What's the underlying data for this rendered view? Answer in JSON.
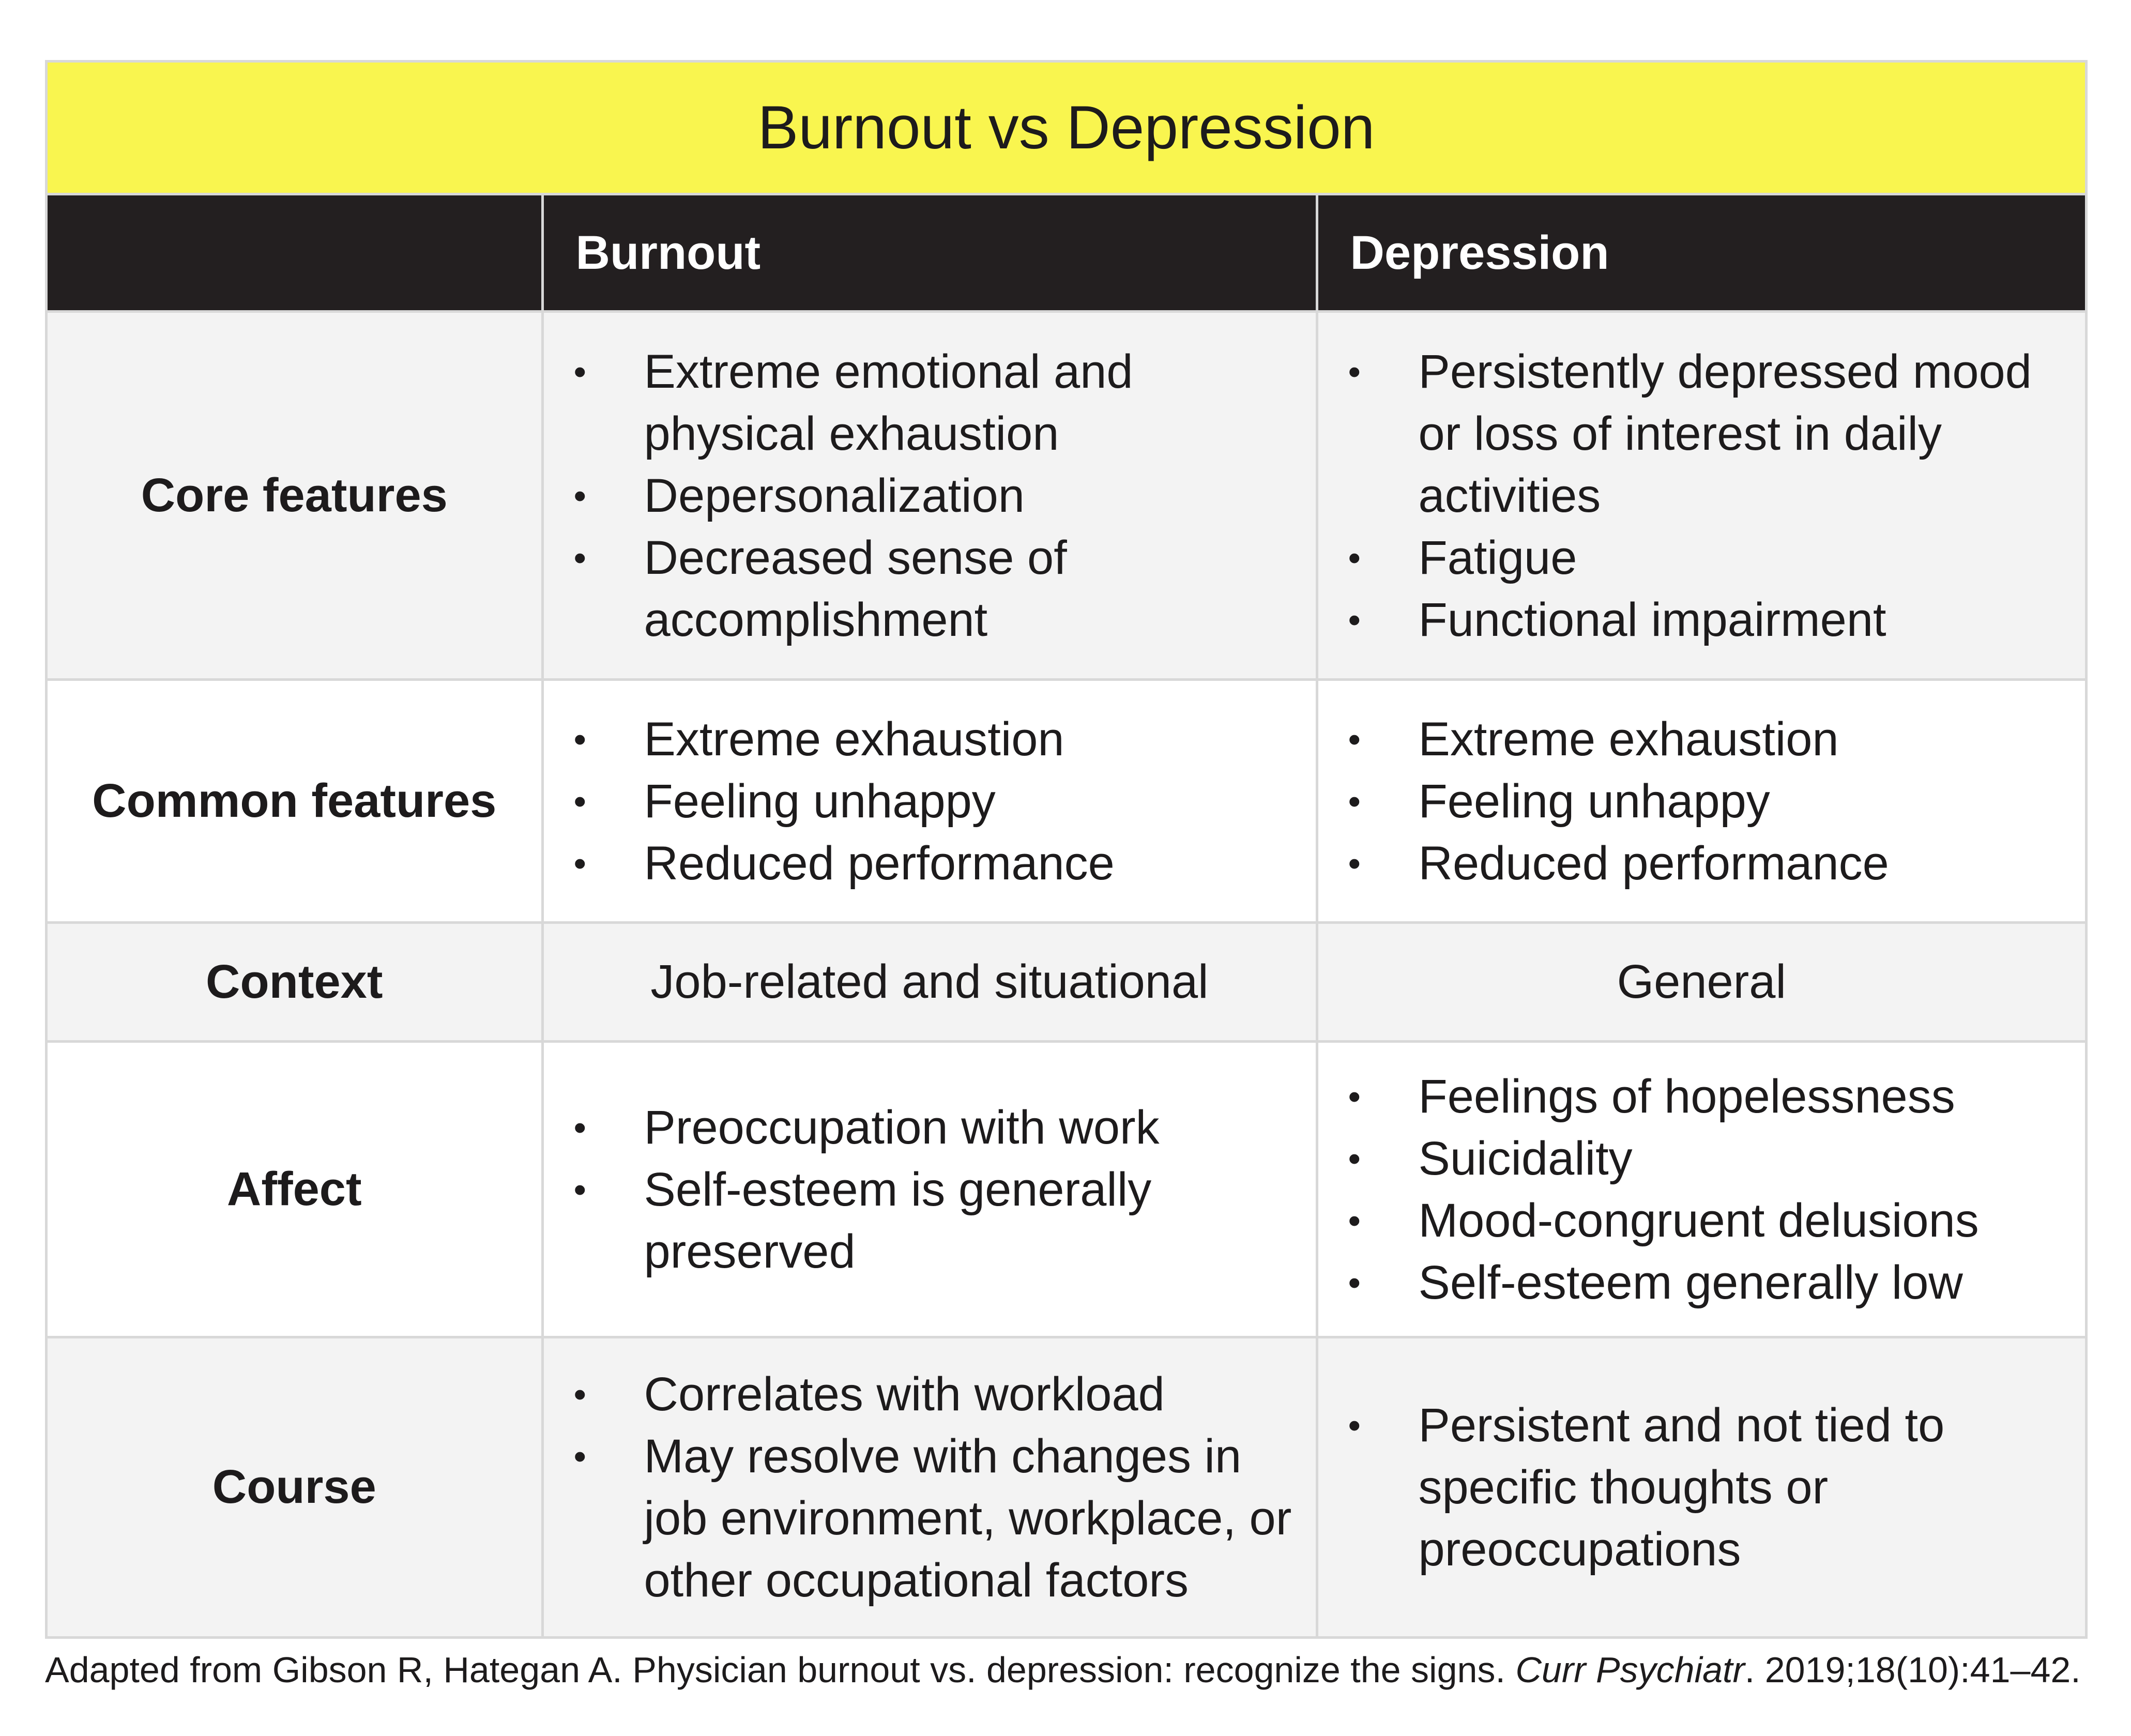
{
  "title": "Burnout vs Depression",
  "columns": [
    "",
    "Burnout",
    "Depression"
  ],
  "rows": [
    {
      "label": "Core features",
      "burnout": [
        "Extreme emotional and physical exhaustion",
        "Depersonalization",
        "Decreased sense of accomplishment"
      ],
      "depression": [
        "Persistently depressed mood or loss of interest in daily activities",
        "Fatigue",
        "Functional impairment"
      ]
    },
    {
      "label": "Common features",
      "burnout": [
        "Extreme exhaustion",
        "Feeling unhappy",
        "Reduced performance"
      ],
      "depression": [
        "Extreme exhaustion",
        "Feeling unhappy",
        "Reduced performance"
      ]
    },
    {
      "label": "Context",
      "burnout_text": "Job-related and situational",
      "depression_text": "General"
    },
    {
      "label": "Affect",
      "burnout": [
        "Preoccupation with work",
        "Self-esteem is generally preserved"
      ],
      "depression": [
        "Feelings of hopelessness",
        "Suicidality",
        "Mood-congruent delusions",
        "Self-esteem generally low"
      ]
    },
    {
      "label": "Course",
      "burnout": [
        "Correlates with workload",
        "May resolve with changes in job environment, workplace, or other occupational factors"
      ],
      "depression": [
        "Persistent and not tied to specific thoughts or preoccupations"
      ]
    }
  ],
  "footnote": {
    "prefix": "Adapted from Gibson R, Hategan A. Physician burnout vs. depression: recognize the signs. ",
    "journal": "Curr Psychiatr",
    "suffix": ". 2019;18(10):41–42."
  },
  "colors": {
    "title_bg": "#f9f54f",
    "header_bg": "#231f20",
    "row_grey": "#f3f3f3",
    "border": "#d8d8d8"
  }
}
